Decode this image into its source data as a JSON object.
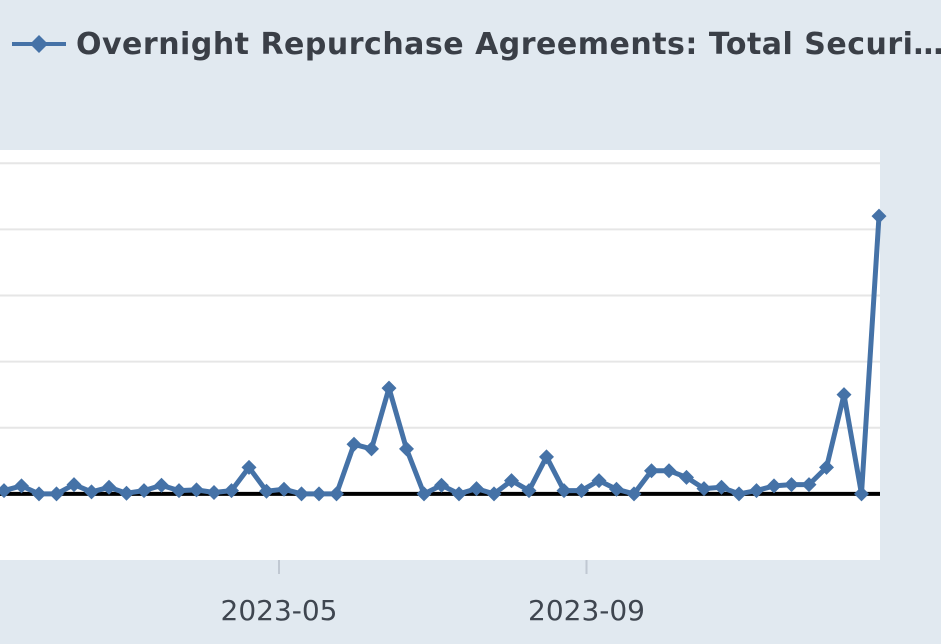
{
  "legend": {
    "label": "Overnight Repurchase Agreements: Total Securi…",
    "color": "#4572a7"
  },
  "colors": {
    "background": "#e1e9f0",
    "plot_background": "#ffffff",
    "series": "#4572a7",
    "grid": "#e6e6e6",
    "baseline": "#000000"
  },
  "chart_data": {
    "type": "line",
    "title": "",
    "xlabel": "",
    "ylabel": "",
    "grid": true,
    "legend_position": "top-left",
    "x_ticks": [
      "2023-05",
      "2023-09"
    ],
    "baseline_value": 0,
    "ylim": [
      -1,
      5.2
    ],
    "series": [
      {
        "name": "Overnight Repurchase Agreements: Total Securi…",
        "marker": "diamond",
        "x": [
          "2023-01-11",
          "2023-01-18",
          "2023-01-25",
          "2023-02-01",
          "2023-02-08",
          "2023-02-15",
          "2023-02-22",
          "2023-03-01",
          "2023-03-08",
          "2023-03-15",
          "2023-03-22",
          "2023-03-29",
          "2023-04-05",
          "2023-04-12",
          "2023-04-19",
          "2023-04-26",
          "2023-05-03",
          "2023-05-10",
          "2023-05-17",
          "2023-05-24",
          "2023-05-31",
          "2023-06-07",
          "2023-06-14",
          "2023-06-21",
          "2023-06-28",
          "2023-07-05",
          "2023-07-12",
          "2023-07-19",
          "2023-07-26",
          "2023-08-02",
          "2023-08-09",
          "2023-08-16",
          "2023-08-23",
          "2023-08-30",
          "2023-09-06",
          "2023-09-13",
          "2023-09-20",
          "2023-09-27",
          "2023-10-04",
          "2023-10-11",
          "2023-10-18",
          "2023-10-25",
          "2023-11-01",
          "2023-11-08",
          "2023-11-15",
          "2023-11-22",
          "2023-11-29",
          "2023-12-06",
          "2023-12-13",
          "2023-12-20",
          "2023-12-27"
        ],
        "values": [
          0.05,
          0.12,
          0.0,
          0.0,
          0.14,
          0.03,
          0.1,
          0.01,
          0.05,
          0.13,
          0.05,
          0.06,
          0.02,
          0.05,
          0.4,
          0.04,
          0.07,
          0.0,
          0.0,
          0.0,
          0.75,
          0.68,
          1.6,
          0.68,
          0.0,
          0.13,
          0.0,
          0.08,
          0.0,
          0.2,
          0.05,
          0.56,
          0.05,
          0.05,
          0.2,
          0.07,
          0.0,
          0.35,
          0.35,
          0.25,
          0.08,
          0.1,
          0.0,
          0.05,
          0.12,
          0.14,
          0.14,
          0.4,
          1.5,
          0.0,
          4.2
        ]
      }
    ]
  }
}
